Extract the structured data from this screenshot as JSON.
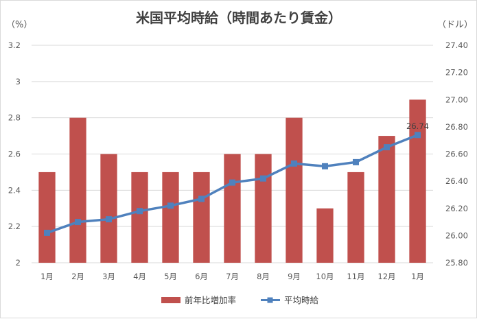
{
  "chart_data": {
    "type": "bar+line",
    "title": "米国平均時給（時間あたり賃金）",
    "categories": [
      "1月",
      "2月",
      "3月",
      "4月",
      "5月",
      "6月",
      "7月",
      "8月",
      "9月",
      "10月",
      "11月",
      "12月",
      "1月"
    ],
    "left_axis": {
      "unit": "（%）",
      "min": 2,
      "max": 3.2,
      "ticks": [
        "2",
        "2.2",
        "2.4",
        "2.6",
        "2.8",
        "3",
        "3.2"
      ],
      "tick_values": [
        2,
        2.2,
        2.4,
        2.6,
        2.8,
        3,
        3.2
      ]
    },
    "right_axis": {
      "unit": "（ドル）",
      "min": 25.8,
      "max": 27.4,
      "ticks": [
        "25.80",
        "26.00",
        "26.20",
        "26.40",
        "26.60",
        "26.80",
        "27.00",
        "27.20",
        "27.40"
      ],
      "tick_values": [
        25.8,
        26.0,
        26.2,
        26.4,
        26.6,
        26.8,
        27.0,
        27.2,
        27.4
      ]
    },
    "series": [
      {
        "name": "前年比増加率",
        "type": "bar",
        "axis": "left",
        "color": "#c0504d",
        "values": [
          2.5,
          2.8,
          2.6,
          2.5,
          2.5,
          2.5,
          2.6,
          2.6,
          2.8,
          2.3,
          2.5,
          2.7,
          2.9
        ]
      },
      {
        "name": "平均時給",
        "type": "line",
        "axis": "right",
        "color": "#4f81bd",
        "values": [
          26.02,
          26.1,
          26.12,
          26.18,
          26.22,
          26.27,
          26.39,
          26.42,
          26.53,
          26.51,
          26.54,
          26.65,
          26.74
        ],
        "last_label": "26.74"
      }
    ],
    "grid": true,
    "legend_position": "bottom"
  }
}
